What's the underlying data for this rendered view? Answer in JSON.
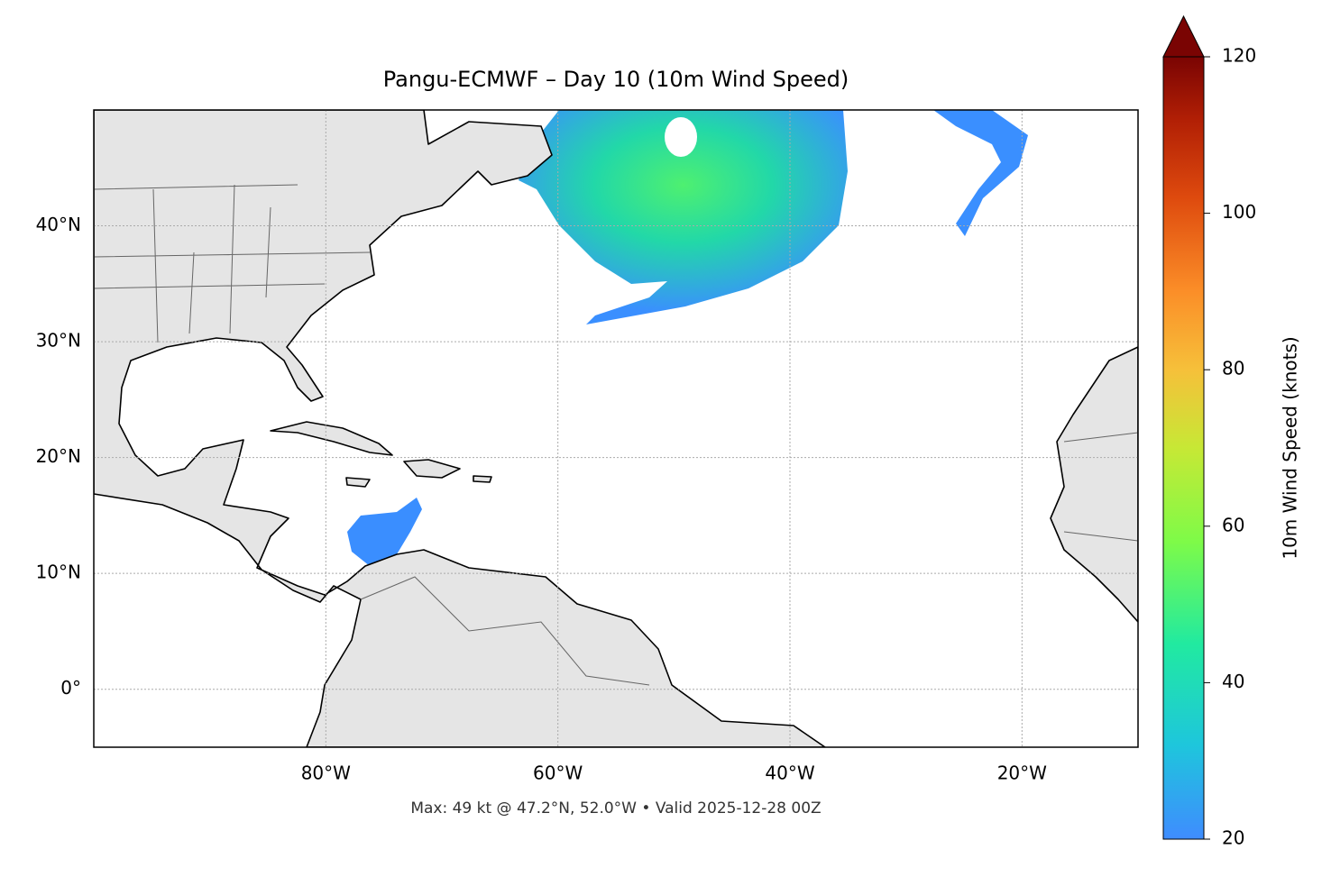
{
  "map": {
    "title": "Pangu-ECMWF – Day 10 (10m Wind Speed)",
    "footer": "Max: 49 kt @ 47.2°N, 52.0°W • Valid 2025-12-28 00Z",
    "xlim": [
      -100,
      -10
    ],
    "ylim": [
      -5,
      50
    ],
    "xticks": [
      {
        "value": -80,
        "label": "80°W"
      },
      {
        "value": -60,
        "label": "60°W"
      },
      {
        "value": -40,
        "label": "40°W"
      },
      {
        "value": -20,
        "label": "20°W"
      }
    ],
    "yticks": [
      {
        "value": 0,
        "label": "0°"
      },
      {
        "value": 10,
        "label": "10°N"
      },
      {
        "value": 20,
        "label": "20°N"
      },
      {
        "value": 30,
        "label": "30°N"
      },
      {
        "value": 40,
        "label": "40°N"
      }
    ],
    "grid": true,
    "colorbar": {
      "label": "10m Wind Speed (knots)",
      "lim": [
        20,
        120
      ],
      "ticks": [
        20,
        40,
        60,
        80,
        100,
        120
      ],
      "extend": "max"
    }
  }
}
